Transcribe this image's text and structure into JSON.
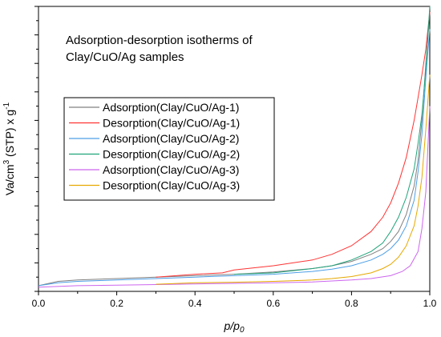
{
  "chart_data": {
    "type": "line",
    "title": "",
    "annotation": [
      "Adsorption-desorption isotherms of",
      "Clay/CuO/Ag samples"
    ],
    "xlabel_main": "p/p",
    "xlabel_sub": "0",
    "ylabel_pre": "Va/cm",
    "ylabel_sup1": "3",
    "ylabel_mid": " (STP) x g",
    "ylabel_sup2": "-1",
    "xlim": [
      0,
      1
    ],
    "ylim": [
      0,
      100
    ],
    "xticks": [
      0.0,
      0.2,
      0.4,
      0.6,
      0.8,
      1.0
    ],
    "xtick_labels": [
      "0.0",
      "0.2",
      "0.4",
      "0.6",
      "0.8",
      "1.0"
    ],
    "grid": false,
    "legend_position": "middle-left",
    "series": [
      {
        "name": "Adsorption(Clay/CuO/Ag-1)",
        "color": "#808080",
        "x": [
          0,
          0.05,
          0.1,
          0.2,
          0.3,
          0.4,
          0.5,
          0.6,
          0.7,
          0.75,
          0.8,
          0.85,
          0.88,
          0.9,
          0.92,
          0.94,
          0.96,
          0.97,
          0.98,
          0.99,
          1.0
        ],
        "y": [
          2,
          3.5,
          4,
          4.5,
          5,
          5.5,
          6,
          6.8,
          8,
          9,
          10.5,
          13,
          15,
          17.5,
          21,
          27,
          37,
          46,
          60,
          80,
          98
        ]
      },
      {
        "name": "Desorption(Clay/CuO/Ag-1)",
        "color": "#ff3333",
        "x": [
          0.3,
          0.4,
          0.47,
          0.5,
          0.6,
          0.7,
          0.75,
          0.8,
          0.85,
          0.88,
          0.9,
          0.92,
          0.94,
          0.96,
          0.97,
          0.98,
          0.99,
          1.0
        ],
        "y": [
          5,
          6,
          6.5,
          7.5,
          9,
          11,
          13,
          16,
          21,
          26,
          31,
          38,
          47,
          60,
          68,
          76,
          85,
          98
        ]
      },
      {
        "name": "Adsorption(Clay/CuO/Ag-2)",
        "color": "#4d9fe6",
        "x": [
          0,
          0.05,
          0.1,
          0.2,
          0.3,
          0.4,
          0.5,
          0.6,
          0.7,
          0.75,
          0.8,
          0.85,
          0.88,
          0.9,
          0.92,
          0.94,
          0.96,
          0.97,
          0.98,
          0.99,
          1.0
        ],
        "y": [
          2,
          3,
          3.5,
          4,
          4.5,
          5,
          5.5,
          6,
          7,
          7.8,
          9,
          11,
          13,
          15,
          18,
          23,
          32,
          42,
          55,
          75,
          92
        ]
      },
      {
        "name": "Desorption(Clay/CuO/Ag-2)",
        "color": "#1fa37a",
        "x": [
          0.5,
          0.6,
          0.7,
          0.75,
          0.8,
          0.85,
          0.88,
          0.9,
          0.92,
          0.94,
          0.96,
          0.97,
          0.98,
          0.99,
          1.0
        ],
        "y": [
          6,
          6.5,
          8,
          9,
          11,
          14,
          17,
          21,
          26,
          33,
          43,
          52,
          62,
          78,
          100
        ]
      },
      {
        "name": "Adsorption(Clay/CuO/Ag-3)",
        "color": "#cc66ee",
        "x": [
          0,
          0.1,
          0.2,
          0.3,
          0.4,
          0.5,
          0.6,
          0.7,
          0.8,
          0.85,
          0.9,
          0.93,
          0.95,
          0.97,
          0.98,
          0.99,
          1.0
        ],
        "y": [
          1.5,
          2,
          2.2,
          2.4,
          2.6,
          2.8,
          3,
          3.3,
          4,
          4.5,
          5.5,
          7,
          9,
          14,
          22,
          35,
          65
        ]
      },
      {
        "name": "Desorption(Clay/CuO/Ag-3)",
        "color": "#e6a800",
        "x": [
          0.3,
          0.4,
          0.5,
          0.6,
          0.7,
          0.75,
          0.8,
          0.85,
          0.88,
          0.9,
          0.92,
          0.94,
          0.96,
          0.97,
          0.98,
          0.99,
          1.0
        ],
        "y": [
          2.5,
          3,
          3.2,
          3.5,
          4,
          4.5,
          5.2,
          6.5,
          8,
          9.5,
          12,
          16,
          23,
          30,
          40,
          57,
          76
        ]
      }
    ]
  }
}
